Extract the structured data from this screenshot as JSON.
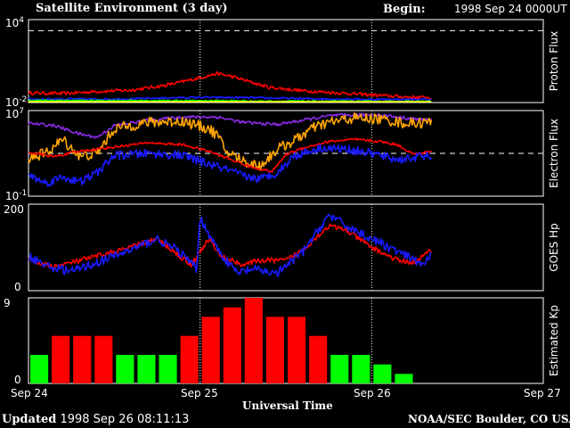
{
  "header": {
    "title": "Satellite Environment (3 day)",
    "begin_label": "Begin:",
    "begin_value": "1998 Sep 24 0000UT"
  },
  "footer": {
    "updated_label": "Updated",
    "updated_value": "1998 Sep 26 08:11:13",
    "credit": "NOAA/SEC Boulder, CO USA"
  },
  "chart_data": [
    {
      "type": "line",
      "panel": "proton",
      "ylabel": "Proton Flux",
      "scale": "log",
      "ylim_exp": [
        -2,
        4
      ],
      "ytick_labels": [
        {
          "base": "10",
          "exp": "4"
        },
        {
          "base": "10",
          "exp": "-2"
        }
      ],
      "threshold_exp": 3.2,
      "x_days": [
        0,
        3
      ],
      "series": [
        {
          "color": "#ff0000",
          "points": [
            [
              0,
              -1.3
            ],
            [
              0.2,
              -1.35
            ],
            [
              0.4,
              -1.2
            ],
            [
              0.6,
              -1.1
            ],
            [
              0.8,
              -0.75
            ],
            [
              0.95,
              -0.35
            ],
            [
              1.05,
              -0.05
            ],
            [
              1.1,
              0.1
            ],
            [
              1.18,
              -0.1
            ],
            [
              1.25,
              -0.35
            ],
            [
              1.4,
              -0.9
            ],
            [
              1.6,
              -1.15
            ],
            [
              1.8,
              -1.3
            ],
            [
              2,
              -1.45
            ],
            [
              2.2,
              -1.6
            ],
            [
              2.35,
              -1.65
            ]
          ],
          "noise": 0.12
        },
        {
          "color": "#1a1aff",
          "points": [
            [
              0,
              -1.75
            ],
            [
              0.5,
              -1.75
            ],
            [
              1,
              -1.62
            ],
            [
              1.3,
              -1.65
            ],
            [
              1.6,
              -1.72
            ],
            [
              2,
              -1.77
            ],
            [
              2.35,
              -1.78
            ]
          ],
          "noise": 0.07
        },
        {
          "color": "#00ff00",
          "points": [
            [
              0,
              -1.85
            ],
            [
              1.2,
              -1.87
            ],
            [
              1.3,
              -1.9
            ],
            [
              2.35,
              -1.92
            ]
          ],
          "noise": 0.05
        },
        {
          "color": "#ffff00",
          "points": [
            [
              0,
              -1.96
            ],
            [
              2.35,
              -1.96
            ]
          ],
          "noise": 0.01
        }
      ]
    },
    {
      "type": "line",
      "panel": "electron",
      "ylabel": "Electron Flux",
      "scale": "log",
      "ylim_exp": [
        -1,
        7
      ],
      "ytick_labels": [
        {
          "base": "10",
          "exp": "7"
        },
        {
          "base": "10",
          "exp": "-1"
        }
      ],
      "threshold_exp": 3,
      "x_days": [
        0,
        3
      ],
      "series": [
        {
          "color": "#8a2be2",
          "points": [
            [
              0,
              5.8
            ],
            [
              0.15,
              5.6
            ],
            [
              0.3,
              4.8
            ],
            [
              0.4,
              4.5
            ],
            [
              0.5,
              5.6
            ],
            [
              0.7,
              6.1
            ],
            [
              0.9,
              6.4
            ],
            [
              1.1,
              6.4
            ],
            [
              1.25,
              5.9
            ],
            [
              1.45,
              5.7
            ],
            [
              1.6,
              6.1
            ],
            [
              1.75,
              6.5
            ],
            [
              1.9,
              6.6
            ],
            [
              2.05,
              6.6
            ],
            [
              2.2,
              6.3
            ],
            [
              2.35,
              6.1
            ]
          ],
          "noise": 0.15
        },
        {
          "color": "#ffa500",
          "points": [
            [
              0,
              2.6
            ],
            [
              0.1,
              3.0
            ],
            [
              0.2,
              4.3
            ],
            [
              0.3,
              2.7
            ],
            [
              0.4,
              3.0
            ],
            [
              0.5,
              5.3
            ],
            [
              0.7,
              5.9
            ],
            [
              0.9,
              6.0
            ],
            [
              1.05,
              5.3
            ],
            [
              1.1,
              4.7
            ],
            [
              1.15,
              3.2
            ],
            [
              1.25,
              2.3
            ],
            [
              1.35,
              1.8
            ],
            [
              1.45,
              3.4
            ],
            [
              1.55,
              4.2
            ],
            [
              1.65,
              5.3
            ],
            [
              1.75,
              5.9
            ],
            [
              1.9,
              6.3
            ],
            [
              2.05,
              6.2
            ],
            [
              2.2,
              5.8
            ],
            [
              2.35,
              5.9
            ]
          ],
          "noise": 0.5
        },
        {
          "color": "#ff0000",
          "points": [
            [
              0,
              3.1
            ],
            [
              0.15,
              2.7
            ],
            [
              0.3,
              3.2
            ],
            [
              0.5,
              3.6
            ],
            [
              0.7,
              4.0
            ],
            [
              0.9,
              3.8
            ],
            [
              1.05,
              3.2
            ],
            [
              1.15,
              2.6
            ],
            [
              1.3,
              1.7
            ],
            [
              1.42,
              1.3
            ],
            [
              1.5,
              2.9
            ],
            [
              1.6,
              3.5
            ],
            [
              1.75,
              4.1
            ],
            [
              1.9,
              4.3
            ],
            [
              2.05,
              4.1
            ],
            [
              2.15,
              3.8
            ],
            [
              2.25,
              2.9
            ],
            [
              2.35,
              3.2
            ]
          ],
          "noise": 0.12
        },
        {
          "color": "#1a1aff",
          "points": [
            [
              0,
              1.0
            ],
            [
              0.1,
              0.2
            ],
            [
              0.2,
              0.8
            ],
            [
              0.3,
              0.3
            ],
            [
              0.4,
              1.2
            ],
            [
              0.5,
              2.8
            ],
            [
              0.7,
              3.0
            ],
            [
              0.9,
              2.8
            ],
            [
              1.05,
              2.0
            ],
            [
              1.15,
              1.5
            ],
            [
              1.25,
              0.9
            ],
            [
              1.35,
              0.6
            ],
            [
              1.45,
              1.2
            ],
            [
              1.55,
              2.8
            ],
            [
              1.7,
              3.5
            ],
            [
              1.85,
              3.4
            ],
            [
              2.0,
              3.0
            ],
            [
              2.15,
              2.4
            ],
            [
              2.25,
              2.6
            ],
            [
              2.35,
              2.8
            ]
          ],
          "noise": 0.4
        }
      ]
    },
    {
      "type": "line",
      "panel": "goes_hp",
      "ylabel": "GOES Hp",
      "scale": "linear",
      "ylim": [
        0,
        200
      ],
      "ytick_labels": [
        "200",
        "0"
      ],
      "x_days": [
        0,
        3
      ],
      "series": [
        {
          "color": "#ff0000",
          "points": [
            [
              0,
              70
            ],
            [
              0.15,
              55
            ],
            [
              0.35,
              75
            ],
            [
              0.55,
              95
            ],
            [
              0.75,
              120
            ],
            [
              0.88,
              80
            ],
            [
              0.95,
              60
            ],
            [
              1.0,
              90
            ],
            [
              1.05,
              120
            ],
            [
              1.12,
              80
            ],
            [
              1.25,
              60
            ],
            [
              1.35,
              70
            ],
            [
              1.5,
              70
            ],
            [
              1.6,
              95
            ],
            [
              1.75,
              150
            ],
            [
              1.85,
              140
            ],
            [
              2.0,
              100
            ],
            [
              2.15,
              70
            ],
            [
              2.25,
              65
            ],
            [
              2.35,
              95
            ]
          ],
          "noise": 6
        },
        {
          "color": "#1a1aff",
          "points": [
            [
              0,
              80
            ],
            [
              0.12,
              55
            ],
            [
              0.25,
              45
            ],
            [
              0.4,
              65
            ],
            [
              0.6,
              95
            ],
            [
              0.75,
              120
            ],
            [
              0.88,
              90
            ],
            [
              0.98,
              50
            ],
            [
              1.0,
              170
            ],
            [
              1.08,
              110
            ],
            [
              1.15,
              70
            ],
            [
              1.22,
              40
            ],
            [
              1.3,
              50
            ],
            [
              1.45,
              40
            ],
            [
              1.6,
              90
            ],
            [
              1.75,
              175
            ],
            [
              1.85,
              150
            ],
            [
              2.0,
              120
            ],
            [
              2.2,
              80
            ],
            [
              2.3,
              60
            ],
            [
              2.35,
              80
            ]
          ],
          "noise": 10
        }
      ]
    },
    {
      "type": "bar",
      "panel": "kp",
      "ylabel": "Estimated Kp",
      "ylim": [
        0,
        9
      ],
      "ytick_labels": [
        "9",
        "0"
      ],
      "values": [
        3,
        5,
        5,
        5,
        3,
        3,
        3,
        5,
        7,
        8,
        9,
        7,
        7,
        5,
        3,
        3,
        2,
        1
      ],
      "colors": [
        "#00ff00",
        "#ff0000",
        "#ff0000",
        "#ff0000",
        "#00ff00",
        "#00ff00",
        "#00ff00",
        "#ff0000",
        "#ff0000",
        "#ff0000",
        "#ff0000",
        "#ff0000",
        "#ff0000",
        "#ff0000",
        "#00ff00",
        "#00ff00",
        "#00ff00",
        "#00ff00"
      ]
    }
  ],
  "x_axis": {
    "tick_labels": [
      "Sep 24",
      "Sep 25",
      "Sep 26",
      "Sep 27"
    ],
    "xlabel": "Universal Time"
  },
  "colors": {
    "background": "#000000",
    "frame": "#ffffff",
    "grid": "#ffffff"
  }
}
